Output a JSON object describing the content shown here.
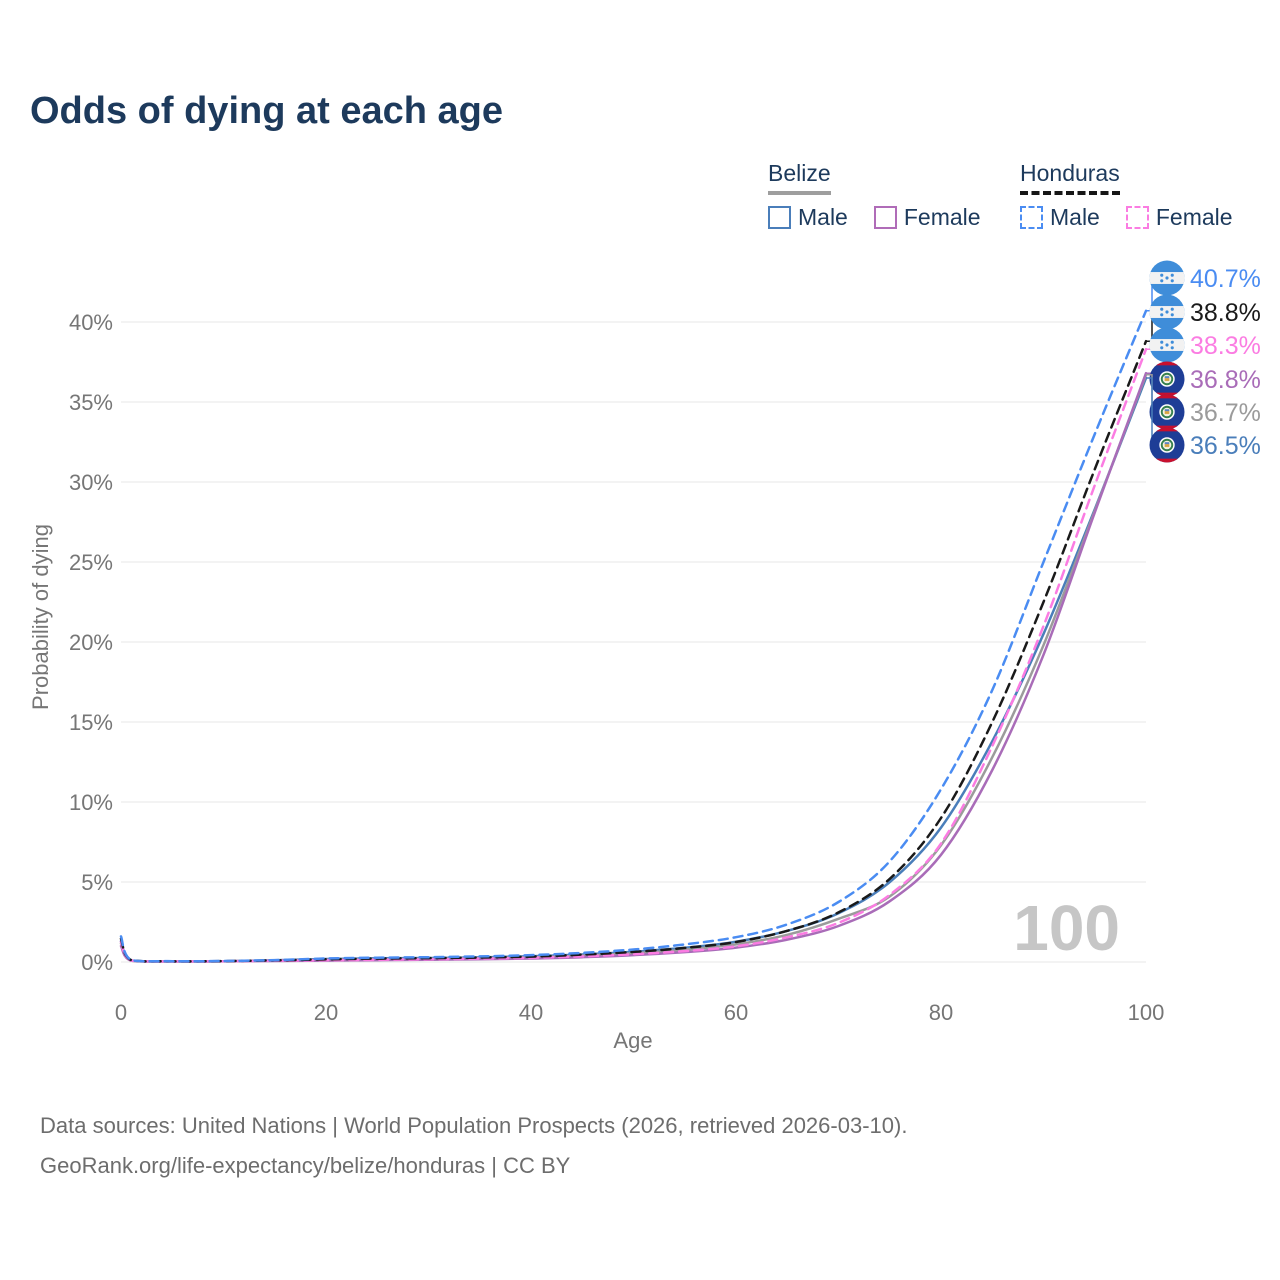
{
  "title": "Odds of dying at each age",
  "legend": {
    "belize": {
      "name": "Belize",
      "male_label": "Male",
      "female_label": "Female"
    },
    "honduras": {
      "name": "Honduras",
      "male_label": "Male",
      "female_label": "Female"
    }
  },
  "footer": {
    "line1": "Data sources: United Nations | World Population Prospects (2026, retrieved 2026-03-10).",
    "line2": "GeoRank.org/life-expectancy/belize/honduras | CC BY"
  },
  "colors": {
    "title_text": "#1d3a5c",
    "axis_text": "#767676",
    "gridline": "#ececec",
    "watermark": "#c6c6c6",
    "belize_male": "#4a7eba",
    "belize_female": "#a96cb8",
    "belize_all": "#9b9b9b",
    "honduras_male": "#4a8cf2",
    "honduras_female": "#fb7ce2",
    "honduras_all": "#1a1a1a"
  },
  "chart_data": {
    "type": "line",
    "title": "Odds of dying at each age",
    "xlabel": "Age",
    "ylabel": "Probability of dying",
    "xlim": [
      0,
      100
    ],
    "ylim_percent": [
      0,
      43.5
    ],
    "x_ticks": [
      0,
      20,
      40,
      60,
      80,
      100
    ],
    "y_ticks": [
      {
        "value": 0,
        "label": "0%"
      },
      {
        "value": 5,
        "label": "5%"
      },
      {
        "value": 10,
        "label": "10%"
      },
      {
        "value": 15,
        "label": "15%"
      },
      {
        "value": 20,
        "label": "20%"
      },
      {
        "value": 25,
        "label": "25%"
      },
      {
        "value": 30,
        "label": "30%"
      },
      {
        "value": 35,
        "label": "35%"
      },
      {
        "value": 40,
        "label": "40%"
      }
    ],
    "grid": "horizontal",
    "legend_position": "top-right",
    "age_watermark": "100",
    "ages": [
      0,
      1,
      5,
      10,
      15,
      20,
      25,
      30,
      35,
      40,
      45,
      50,
      55,
      60,
      65,
      70,
      75,
      80,
      85,
      90,
      95,
      100
    ],
    "series": [
      {
        "id": "honduras-male",
        "name": "Honduras Male",
        "country": "Honduras",
        "sex": "Male",
        "color": "#4a8cf2",
        "dashed": true,
        "flag": "honduras",
        "end_value_label": "40.7%",
        "end_value_percent": 40.7,
        "values_percent": [
          1.6,
          0.12,
          0.05,
          0.06,
          0.12,
          0.22,
          0.27,
          0.3,
          0.35,
          0.43,
          0.57,
          0.78,
          1.1,
          1.55,
          2.35,
          3.75,
          6.3,
          10.8,
          17.0,
          25.0,
          33.0,
          40.7
        ]
      },
      {
        "id": "honduras-all",
        "name": "Honduras",
        "country": "Honduras",
        "sex": "Both",
        "color": "#1a1a1a",
        "dashed": true,
        "flag": "honduras",
        "end_value_label": "38.8%",
        "end_value_percent": 38.8,
        "values_percent": [
          1.45,
          0.11,
          0.045,
          0.055,
          0.1,
          0.17,
          0.21,
          0.24,
          0.28,
          0.34,
          0.46,
          0.63,
          0.88,
          1.25,
          1.95,
          3.1,
          5.2,
          9.0,
          15.0,
          22.5,
          30.8,
          38.8
        ]
      },
      {
        "id": "honduras-female",
        "name": "Honduras Female",
        "country": "Honduras",
        "sex": "Female",
        "color": "#fb7ce2",
        "dashed": true,
        "flag": "honduras",
        "end_value_label": "38.3%",
        "end_value_percent": 38.3,
        "values_percent": [
          1.25,
          0.1,
          0.04,
          0.05,
          0.08,
          0.11,
          0.14,
          0.17,
          0.21,
          0.26,
          0.35,
          0.49,
          0.68,
          0.98,
          1.55,
          2.45,
          4.2,
          7.4,
          13.5,
          21.0,
          29.8,
          38.3
        ]
      },
      {
        "id": "belize-female",
        "name": "Belize Female",
        "country": "Belize",
        "sex": "Female",
        "color": "#a96cb8",
        "dashed": false,
        "flag": "belize",
        "end_value_label": "36.8%",
        "end_value_percent": 36.8,
        "values_percent": [
          1.0,
          0.08,
          0.03,
          0.04,
          0.06,
          0.09,
          0.11,
          0.14,
          0.17,
          0.22,
          0.3,
          0.43,
          0.62,
          0.9,
          1.4,
          2.25,
          3.8,
          6.7,
          12.0,
          19.2,
          28.1,
          36.8
        ]
      },
      {
        "id": "belize-all",
        "name": "Belize",
        "country": "Belize",
        "sex": "Both",
        "color": "#9b9b9b",
        "dashed": false,
        "flag": "belize",
        "end_value_label": "36.7%",
        "end_value_percent": 36.7,
        "values_percent": [
          1.15,
          0.09,
          0.035,
          0.045,
          0.09,
          0.15,
          0.18,
          0.2,
          0.24,
          0.3,
          0.4,
          0.55,
          0.77,
          1.1,
          1.7,
          2.7,
          4.1,
          7.3,
          12.8,
          19.8,
          28.2,
          36.7
        ]
      },
      {
        "id": "belize-male",
        "name": "Belize Male",
        "country": "Belize",
        "sex": "Male",
        "color": "#4a7eba",
        "dashed": false,
        "flag": "belize",
        "end_value_label": "36.5%",
        "end_value_percent": 36.5,
        "values_percent": [
          1.3,
          0.1,
          0.04,
          0.05,
          0.11,
          0.19,
          0.23,
          0.25,
          0.29,
          0.36,
          0.47,
          0.64,
          0.89,
          1.27,
          1.95,
          3.05,
          5.0,
          8.4,
          13.8,
          20.5,
          28.3,
          36.5
        ]
      }
    ]
  }
}
